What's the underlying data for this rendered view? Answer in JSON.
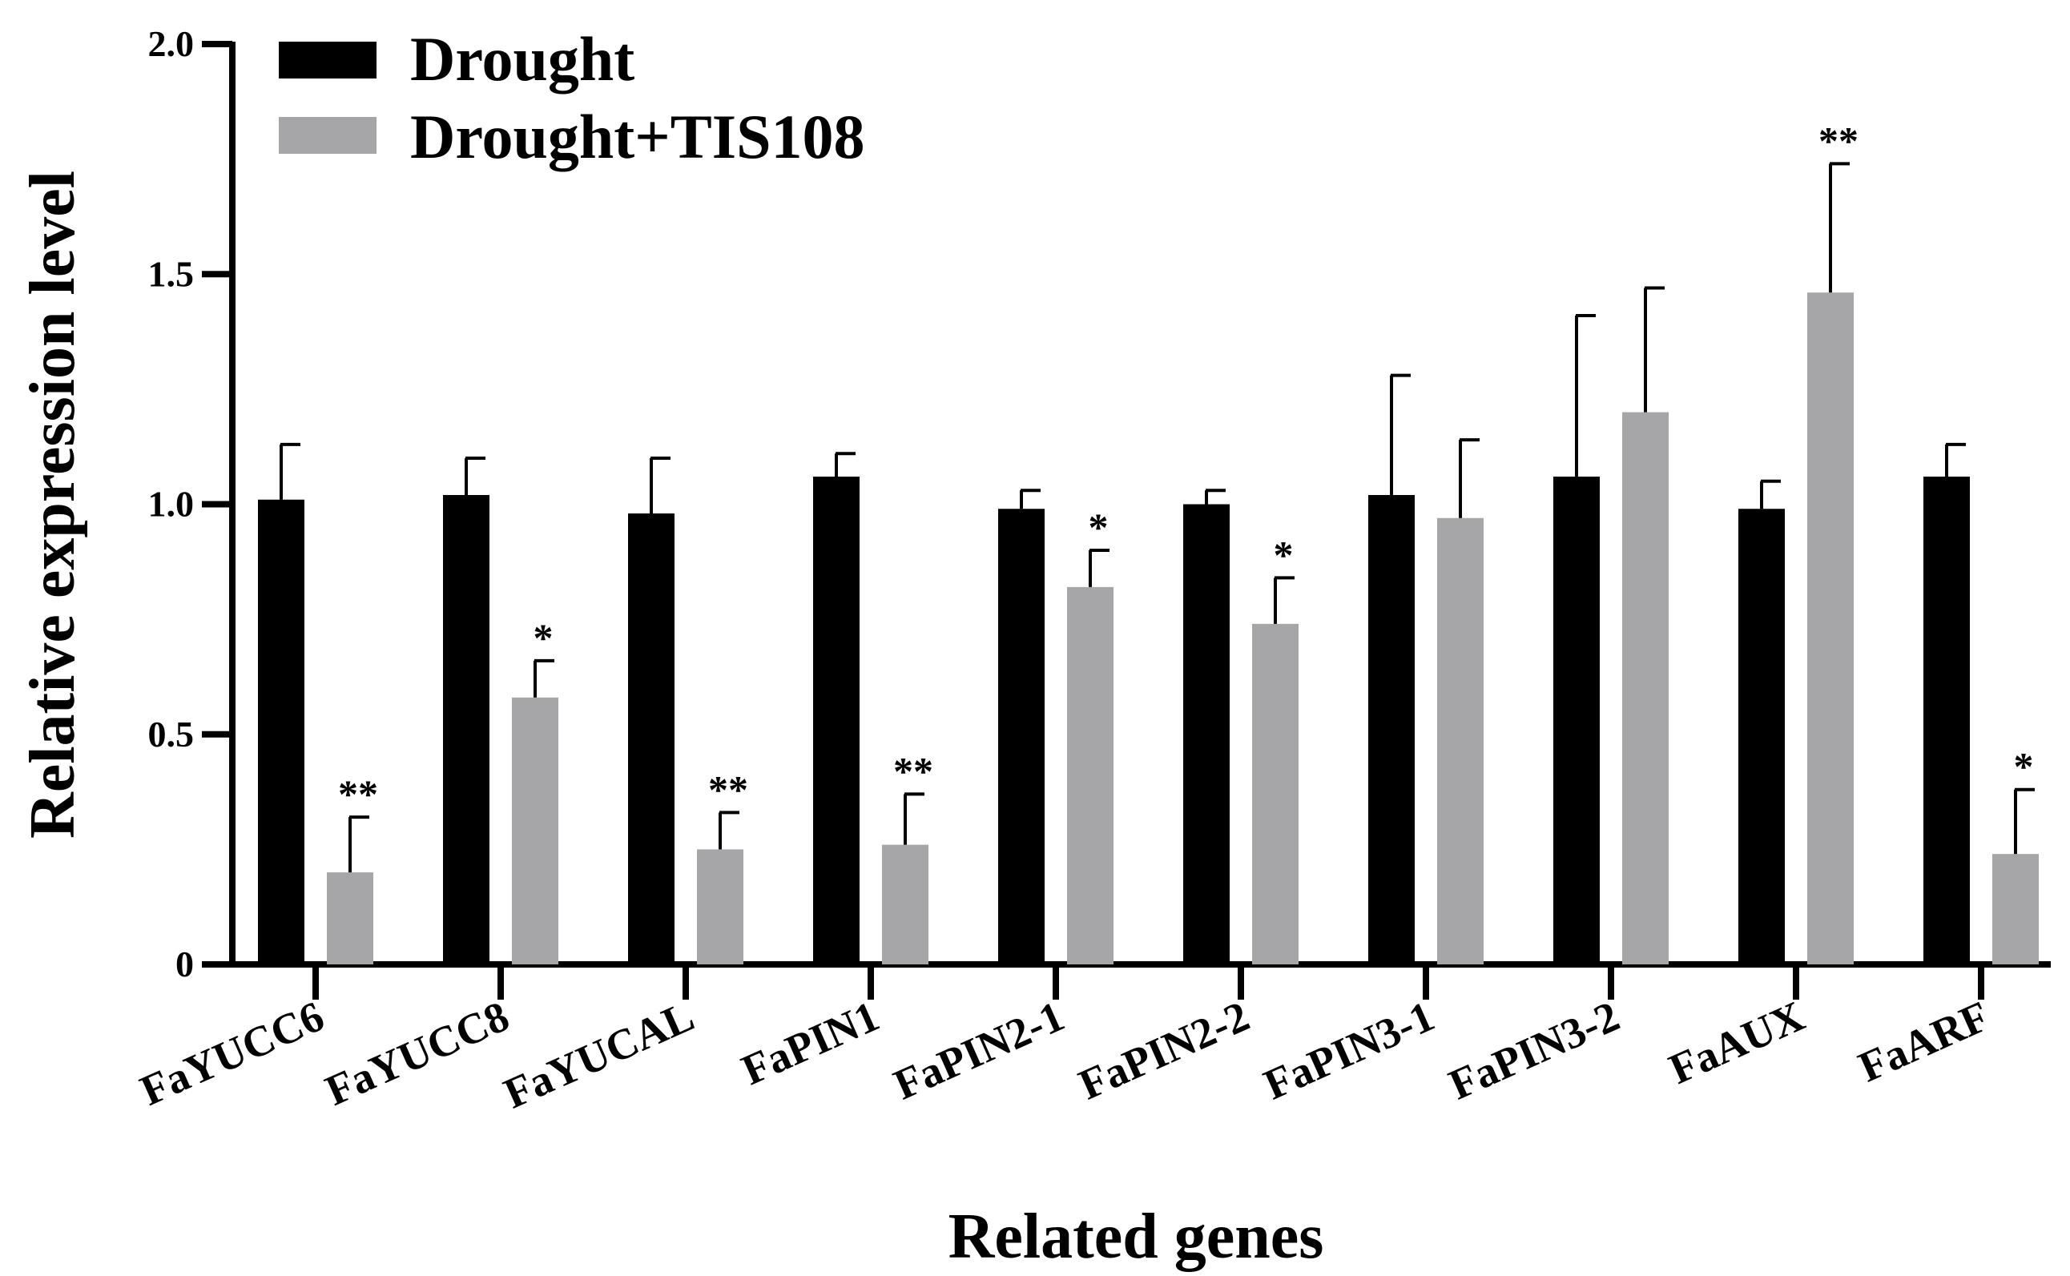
{
  "chart_data": {
    "type": "bar",
    "title": "",
    "xlabel": "Related genes",
    "ylabel": "Relative expression level",
    "ylim": [
      0,
      2.0
    ],
    "yticks": [
      0,
      0.5,
      1.0,
      1.5,
      2.0
    ],
    "ytick_labels": [
      "0",
      "0.5",
      "1.0",
      "1.5",
      "2.0"
    ],
    "grid": false,
    "legend_position": "top-left",
    "categories": [
      "FaYUCC6",
      "FaYUCC8",
      "FaYUCAL",
      "FaPIN1",
      "FaPIN2-1",
      "FaPIN2-2",
      "FaPIN3-1",
      "FaPIN3-2",
      "FaAUX",
      "FaARF"
    ],
    "series": [
      {
        "name": "Drought",
        "color": "#000000",
        "values": [
          1.01,
          1.02,
          0.98,
          1.06,
          0.99,
          1.0,
          1.02,
          1.06,
          0.99,
          1.06
        ],
        "errors": [
          0.12,
          0.08,
          0.12,
          0.05,
          0.04,
          0.03,
          0.26,
          0.35,
          0.06,
          0.07
        ],
        "significance": [
          "",
          "",
          "",
          "",
          "",
          "",
          "",
          "",
          "",
          ""
        ]
      },
      {
        "name": "Drought+TIS108",
        "color": "#a6a6a8",
        "values": [
          0.2,
          0.58,
          0.25,
          0.26,
          0.82,
          0.74,
          0.97,
          1.2,
          1.46,
          0.24
        ],
        "errors": [
          0.12,
          0.08,
          0.08,
          0.11,
          0.08,
          0.1,
          0.17,
          0.27,
          0.28,
          0.14
        ],
        "significance": [
          "**",
          "*",
          "**",
          "**",
          "*",
          "*",
          "",
          "",
          "**",
          "*"
        ]
      }
    ]
  }
}
